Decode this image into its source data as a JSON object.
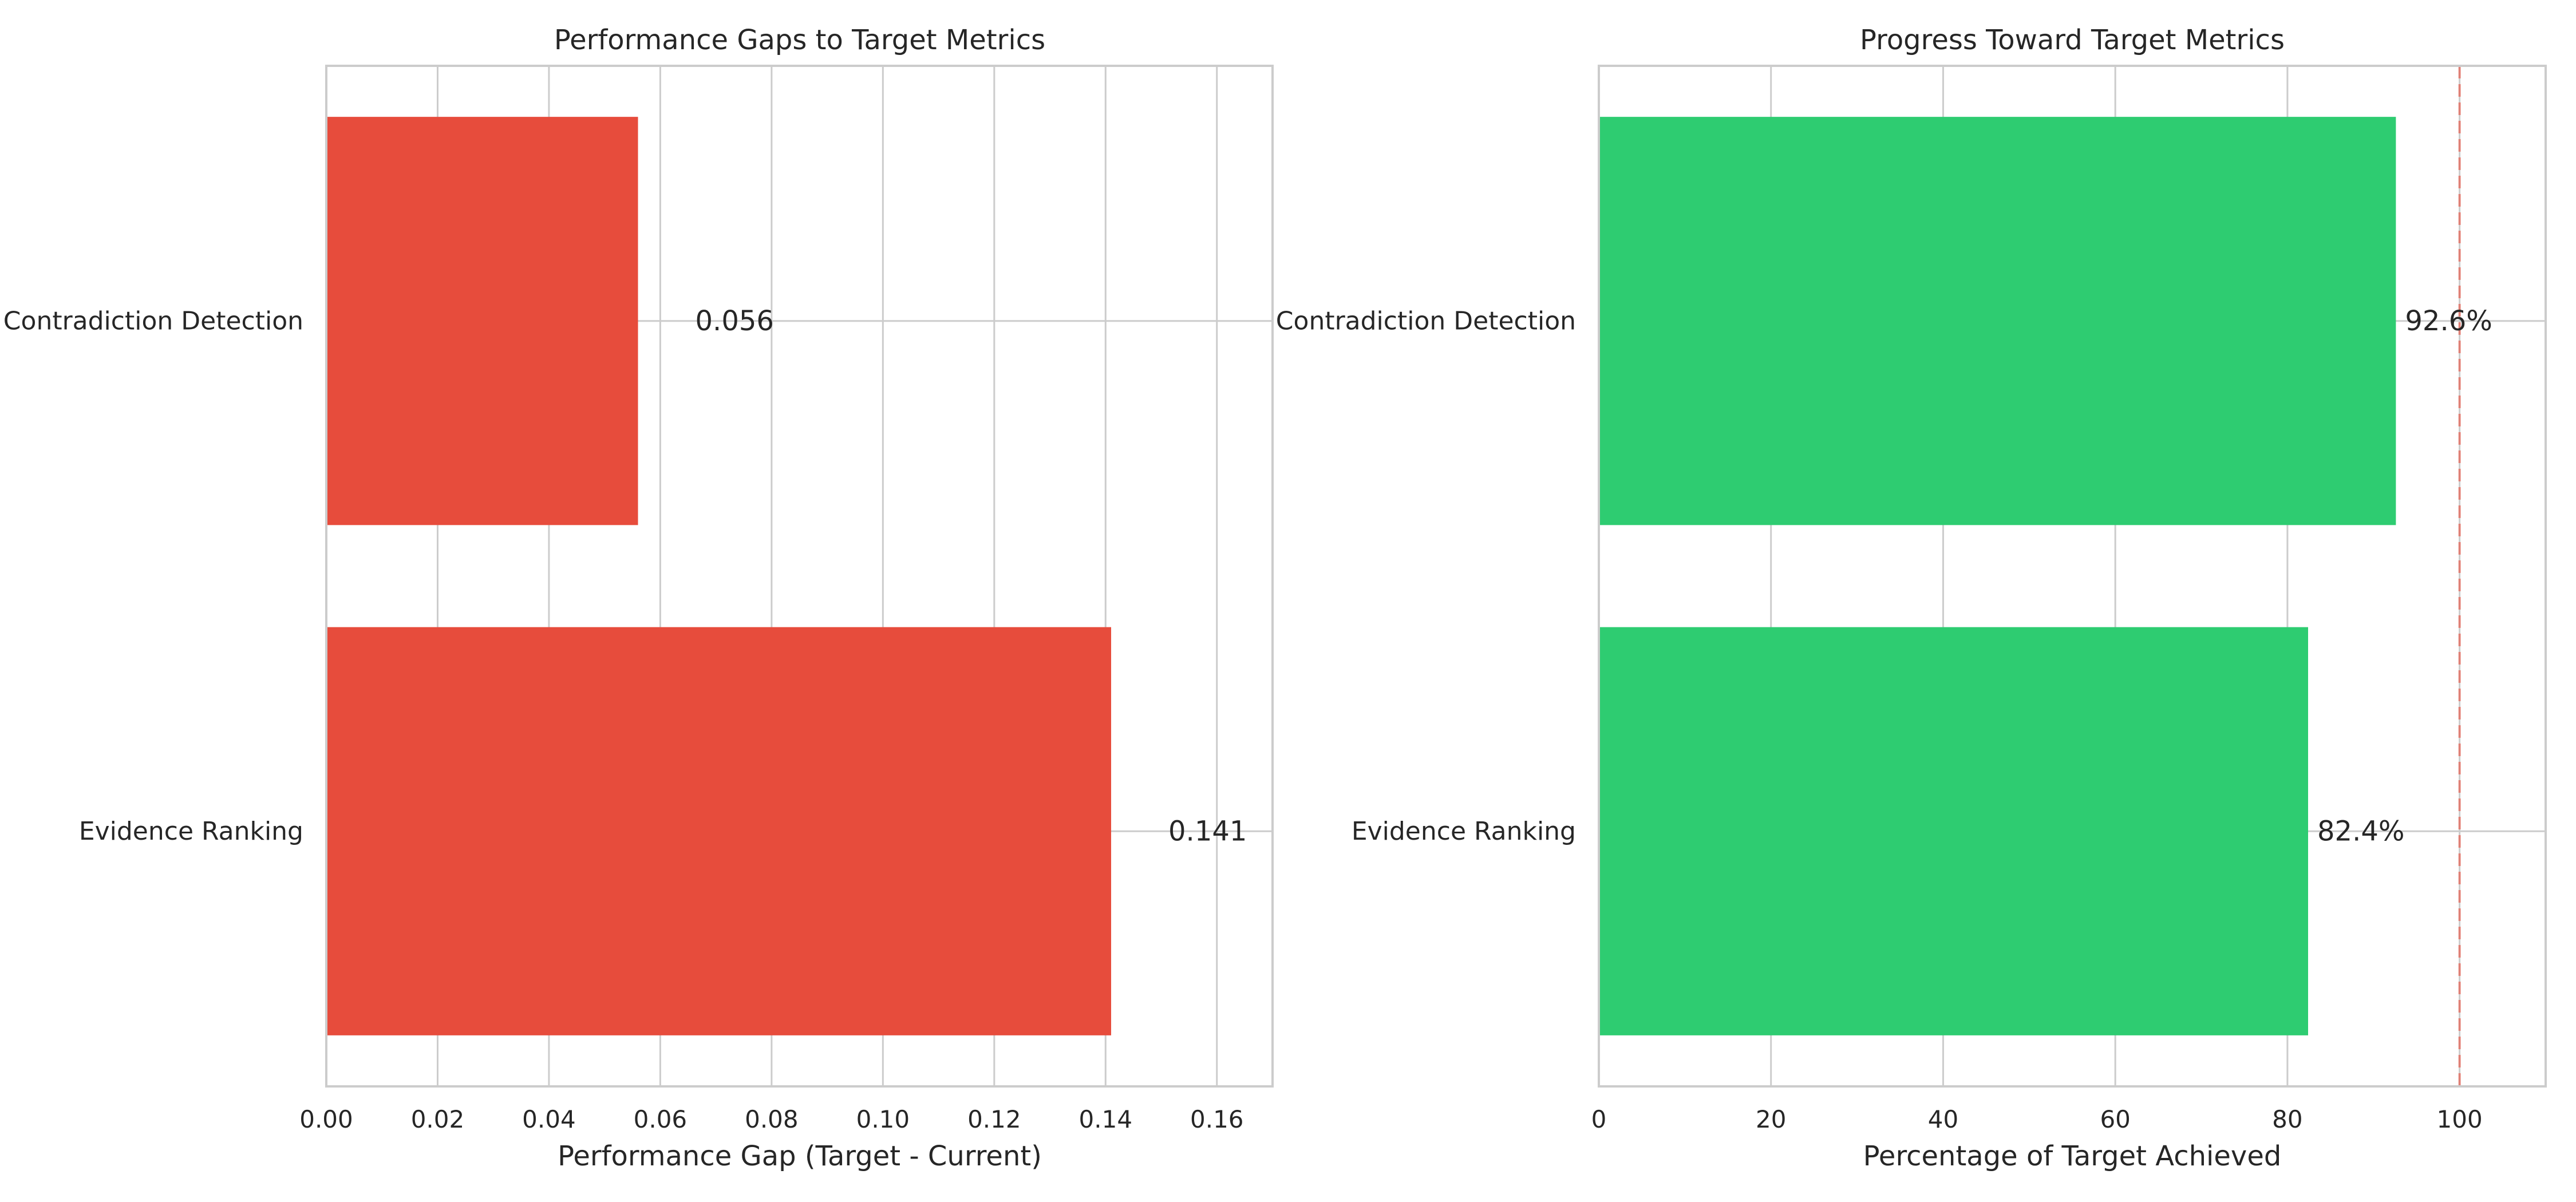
{
  "chart_data": [
    {
      "type": "bar",
      "orientation": "horizontal",
      "title": "Performance Gaps to Target Metrics",
      "xlabel": "Performance Gap (Target - Current)",
      "ylabel": "",
      "categories": [
        "Contradiction Detection",
        "Evidence Ranking"
      ],
      "values": [
        0.056,
        0.141
      ],
      "value_labels": [
        "0.056",
        "0.141"
      ],
      "xlim": [
        0,
        0.17
      ],
      "xticks": [
        0,
        0.02,
        0.04,
        0.06,
        0.08,
        0.1,
        0.12,
        0.14,
        0.16
      ],
      "xtick_labels": [
        "0.00",
        "0.02",
        "0.04",
        "0.06",
        "0.08",
        "0.10",
        "0.12",
        "0.14",
        "0.16"
      ],
      "bar_color": "#e74c3c",
      "grid": true
    },
    {
      "type": "bar",
      "orientation": "horizontal",
      "title": "Progress Toward Target Metrics",
      "xlabel": "Percentage of Target Achieved",
      "ylabel": "",
      "categories": [
        "Contradiction Detection",
        "Evidence Ranking"
      ],
      "values": [
        92.6,
        82.4
      ],
      "value_labels": [
        "92.6%",
        "82.4%"
      ],
      "xlim": [
        0,
        110
      ],
      "xticks": [
        0,
        20,
        40,
        60,
        80,
        100
      ],
      "xtick_labels": [
        "0",
        "20",
        "40",
        "60",
        "80",
        "100"
      ],
      "bar_color": "#2ecc71",
      "reference_line": 100,
      "reference_line_color": "#e74c3c",
      "grid": true
    }
  ]
}
